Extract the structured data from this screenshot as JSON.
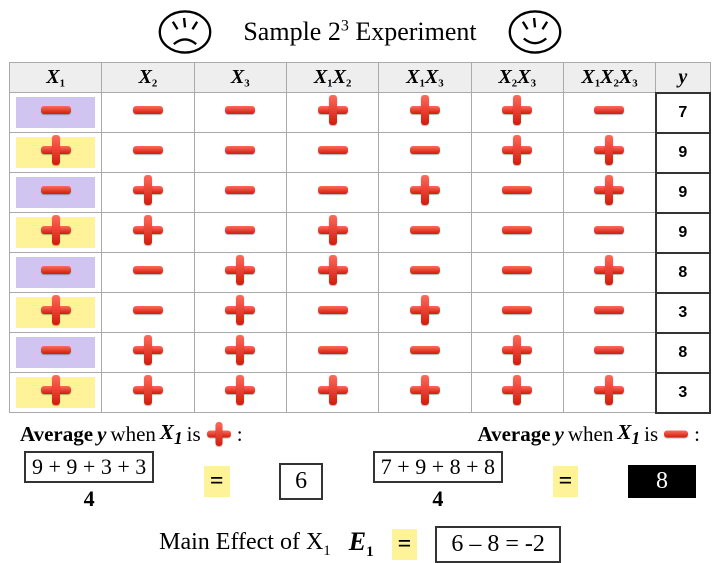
{
  "title_prefix": "Sample 2",
  "title_exp": "3",
  "title_suffix": " Experiment",
  "headers": [
    "X1",
    "X2",
    "X3",
    "X1X2",
    "X1X3",
    "X2X3",
    "X1X2X3",
    "y"
  ],
  "faces": {
    "left": "sad",
    "right": "happy"
  },
  "highlight_colors": {
    "plus": "#fff39a",
    "minus": "#cfc5f0"
  },
  "sign_colors": {
    "top": "#ff6a5b",
    "bottom": "#d01c0c"
  },
  "rows": [
    {
      "signs": [
        "-",
        "-",
        "-",
        "+",
        "+",
        "+",
        "-"
      ],
      "y": 7
    },
    {
      "signs": [
        "+",
        "-",
        "-",
        "-",
        "-",
        "+",
        "+"
      ],
      "y": 9
    },
    {
      "signs": [
        "-",
        "+",
        "-",
        "-",
        "+",
        "-",
        "+"
      ],
      "y": 9
    },
    {
      "signs": [
        "+",
        "+",
        "-",
        "+",
        "-",
        "-",
        "-"
      ],
      "y": 9
    },
    {
      "signs": [
        "-",
        "-",
        "+",
        "+",
        "-",
        "-",
        "+"
      ],
      "y": 8
    },
    {
      "signs": [
        "+",
        "-",
        "+",
        "-",
        "+",
        "-",
        "-"
      ],
      "y": 3
    },
    {
      "signs": [
        "-",
        "+",
        "+",
        "-",
        "-",
        "+",
        "-"
      ],
      "y": 8
    },
    {
      "signs": [
        "+",
        "+",
        "+",
        "+",
        "+",
        "+",
        "+"
      ],
      "y": 3
    }
  ],
  "avg_plus_label_prefix": "Average ",
  "avg_var": "y",
  "avg_when": " when ",
  "avg_x1": "X",
  "avg_x1_sub": "1",
  "avg_is": " is ",
  "plus_numerator": "9 + 9 + 3 + 3",
  "minus_numerator": "7 + 9 + 8 + 8",
  "denominator": "4",
  "plus_result": "6",
  "minus_result": "8",
  "effect_label_prefix": "Main Effect of X",
  "effect_label_sub": "1",
  "e1_label": "E",
  "e1_sub": "1",
  "equals": "=",
  "effect_calc": "6 – 8 = -2",
  "colon": ":"
}
